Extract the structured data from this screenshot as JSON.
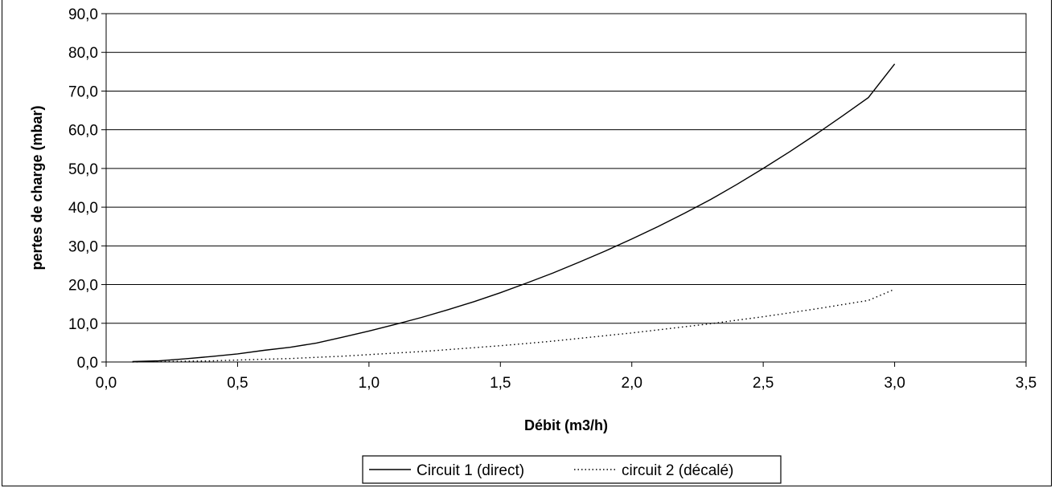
{
  "chart_data": {
    "type": "line",
    "xlabel": "Débit (m3/h)",
    "ylabel": "pertes de charge (mbar)",
    "xlim": [
      0,
      3.5
    ],
    "ylim": [
      0,
      90
    ],
    "x_ticks": [
      "0,0",
      "0,5",
      "1,0",
      "1,5",
      "2,0",
      "2,5",
      "3,0",
      "3,5"
    ],
    "y_ticks": [
      "0,0",
      "10,0",
      "20,0",
      "30,0",
      "40,0",
      "50,0",
      "60,0",
      "70,0",
      "80,0",
      "90,0"
    ],
    "grid": "horizontal",
    "legend_position": "bottom",
    "series": [
      {
        "name": "Circuit 1 (direct)",
        "style": "solid",
        "color": "#000000",
        "x": [
          0.1,
          0.2,
          0.3,
          0.4,
          0.5,
          0.6,
          0.7,
          0.8,
          0.9,
          1.0,
          1.1,
          1.2,
          1.3,
          1.4,
          1.5,
          1.6,
          1.7,
          1.8,
          1.9,
          2.0,
          2.1,
          2.2,
          2.3,
          2.4,
          2.5,
          2.6,
          2.7,
          2.8,
          2.9,
          3.0
        ],
        "y": [
          0.1,
          0.3,
          0.8,
          1.4,
          2.1,
          3.0,
          3.8,
          4.9,
          6.4,
          8.0,
          9.7,
          11.5,
          13.5,
          15.6,
          17.9,
          20.4,
          23.0,
          25.8,
          28.7,
          31.8,
          35.0,
          38.4,
          42.0,
          45.9,
          50.0,
          54.3,
          58.8,
          63.5,
          68.3,
          77.0
        ]
      },
      {
        "name": "circuit 2 (décalé)",
        "style": "dotted",
        "color": "#000000",
        "x": [
          0.1,
          0.2,
          0.3,
          0.4,
          0.5,
          0.6,
          0.7,
          0.8,
          0.9,
          1.0,
          1.1,
          1.2,
          1.3,
          1.4,
          1.5,
          1.6,
          1.7,
          1.8,
          1.9,
          2.0,
          2.1,
          2.2,
          2.3,
          2.4,
          2.5,
          2.6,
          2.7,
          2.8,
          2.9,
          3.0
        ],
        "y": [
          0.0,
          0.1,
          0.2,
          0.3,
          0.5,
          0.7,
          0.9,
          1.2,
          1.5,
          1.9,
          2.3,
          2.7,
          3.2,
          3.7,
          4.2,
          4.8,
          5.4,
          6.1,
          6.8,
          7.5,
          8.3,
          9.1,
          9.9,
          10.8,
          11.7,
          12.7,
          13.7,
          14.8,
          15.9,
          18.8
        ]
      }
    ]
  }
}
